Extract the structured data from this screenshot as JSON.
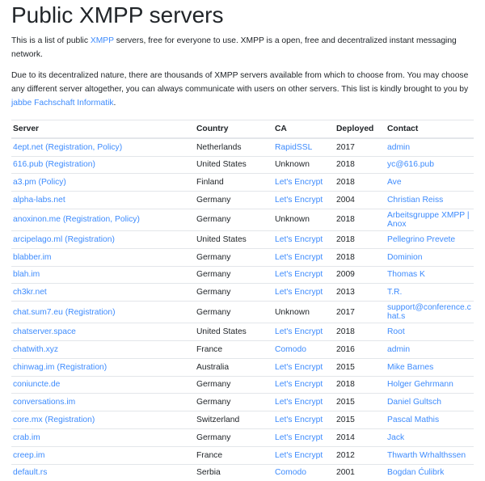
{
  "title": "Public XMPP servers",
  "intro": {
    "before": "This is a list of public ",
    "link": "XMPP",
    "after": " servers, free for everyone to use. XMPP is a open, free and decentralized instant messaging network."
  },
  "para2": {
    "line1": "Due to its decentralized nature, there are thousands of XMPP servers available from which to choose from. You may choose any",
    "line2_before": "different server altogether, you can always communicate with users on other servers. This list is kindly brought to you by ",
    "line2_link": "jabbe",
    "line3_link": "Fachschaft Informatik",
    "line3_after": "."
  },
  "table": {
    "headers": [
      "Server",
      "Country",
      "CA",
      "Deployed",
      "Contact"
    ],
    "rows": [
      {
        "server": "4ept.net",
        "extras": [
          "Registration",
          "Policy"
        ],
        "country": "Netherlands",
        "ca": "RapidSSL",
        "ca_link": true,
        "deployed": "2017",
        "contact": "admin"
      },
      {
        "server": "616.pub",
        "extras": [
          "Registration"
        ],
        "country": "United States",
        "ca": "Unknown",
        "ca_link": false,
        "deployed": "2018",
        "contact": "yc@616.pub"
      },
      {
        "server": "a3.pm",
        "extras": [
          "Policy"
        ],
        "country": "Finland",
        "ca": "Let's Encrypt",
        "ca_link": true,
        "deployed": "2018",
        "contact": "Ave"
      },
      {
        "server": "alpha-labs.net",
        "extras": [],
        "country": "Germany",
        "ca": "Let's Encrypt",
        "ca_link": true,
        "deployed": "2004",
        "contact": "Christian Reiss"
      },
      {
        "server": "anoxinon.me",
        "extras": [
          "Registration",
          "Policy"
        ],
        "country": "Germany",
        "ca": "Unknown",
        "ca_link": false,
        "deployed": "2018",
        "contact": "Arbeitsgruppe XMPP | Anox"
      },
      {
        "server": "arcipelago.ml",
        "extras": [
          "Registration"
        ],
        "country": "United States",
        "ca": "Let's Encrypt",
        "ca_link": true,
        "deployed": "2018",
        "contact": "Pellegrino Prevete"
      },
      {
        "server": "blabber.im",
        "extras": [],
        "country": "Germany",
        "ca": "Let's Encrypt",
        "ca_link": true,
        "deployed": "2018",
        "contact": "Dominion"
      },
      {
        "server": "blah.im",
        "extras": [],
        "country": "Germany",
        "ca": "Let's Encrypt",
        "ca_link": true,
        "deployed": "2009",
        "contact": "Thomas K"
      },
      {
        "server": "ch3kr.net",
        "extras": [],
        "country": "Germany",
        "ca": "Let's Encrypt",
        "ca_link": true,
        "deployed": "2013",
        "contact": "T.R."
      },
      {
        "server": "chat.sum7.eu",
        "extras": [
          "Registration"
        ],
        "country": "Germany",
        "ca": "Unknown",
        "ca_link": false,
        "deployed": "2017",
        "contact": "support@conference.chat.s"
      },
      {
        "server": "chatserver.space",
        "extras": [],
        "country": "United States",
        "ca": "Let's Encrypt",
        "ca_link": true,
        "deployed": "2018",
        "contact": "Root"
      },
      {
        "server": "chatwith.xyz",
        "extras": [],
        "country": "France",
        "ca": "Comodo",
        "ca_link": true,
        "deployed": "2016",
        "contact": "admin"
      },
      {
        "server": "chinwag.im",
        "extras": [
          "Registration"
        ],
        "country": "Australia",
        "ca": "Let's Encrypt",
        "ca_link": true,
        "deployed": "2015",
        "contact": "Mike Barnes"
      },
      {
        "server": "coniuncte.de",
        "extras": [],
        "country": "Germany",
        "ca": "Let's Encrypt",
        "ca_link": true,
        "deployed": "2018",
        "contact": "Holger Gehrmann"
      },
      {
        "server": "conversations.im",
        "extras": [],
        "country": "Germany",
        "ca": "Let's Encrypt",
        "ca_link": true,
        "deployed": "2015",
        "contact": "Daniel Gultsch"
      },
      {
        "server": "core.mx",
        "extras": [
          "Registration"
        ],
        "country": "Switzerland",
        "ca": "Let's Encrypt",
        "ca_link": true,
        "deployed": "2015",
        "contact": "Pascal Mathis"
      },
      {
        "server": "crab.im",
        "extras": [],
        "country": "Germany",
        "ca": "Let's Encrypt",
        "ca_link": true,
        "deployed": "2014",
        "contact": "Jack"
      },
      {
        "server": "creep.im",
        "extras": [],
        "country": "France",
        "ca": "Let's Encrypt",
        "ca_link": true,
        "deployed": "2012",
        "contact": "Thwarth Wrhalthssen"
      },
      {
        "server": "default.rs",
        "extras": [],
        "country": "Serbia",
        "ca": "Comodo",
        "ca_link": true,
        "deployed": "2001",
        "contact": "Bogdan Ćulibrk"
      }
    ]
  },
  "colors": {
    "link": "#3d8bfd",
    "text": "#212529",
    "border": "#e3e6ea"
  }
}
